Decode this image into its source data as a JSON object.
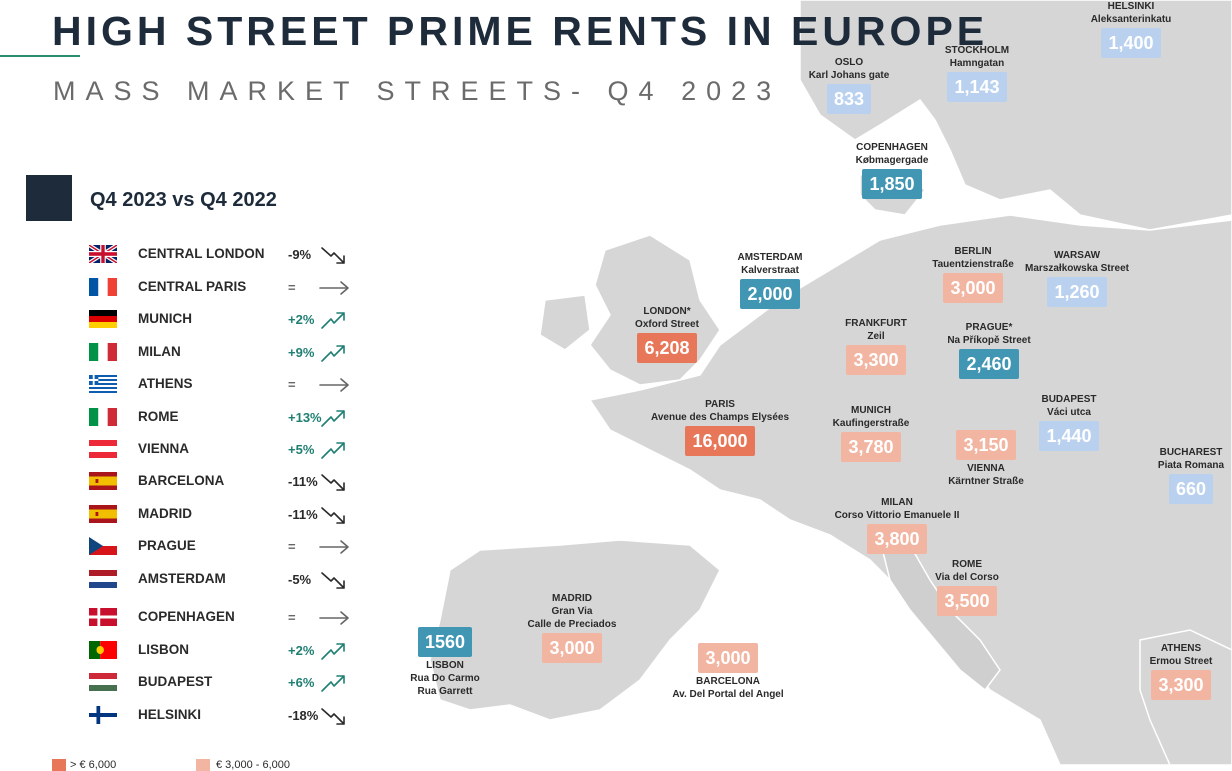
{
  "title": "HIGH STREET PRIME RENTS IN EUROPE",
  "subtitle": "MASS MARKET STREETS- Q4 2023",
  "comparison_title": "Q4 2023 vs Q4 2022",
  "colors": {
    "tier1": "#e8775a",
    "tier2": "#f1b5a2",
    "blue_dark": "#4196b3",
    "blue_light": "#b9d1ee",
    "up": "#1f7f73",
    "down": "#2a2a2a",
    "flat": "#666666",
    "navy": "#1d2b3a"
  },
  "chart_data": {
    "type": "table",
    "title": "HIGH STREET PRIME RENTS IN EUROPE",
    "subtitle": "MASS MARKET STREETS- Q4 2023",
    "changes": [
      {
        "city": "CENTRAL LONDON",
        "change": "-9%",
        "trend": "down",
        "flag": "uk"
      },
      {
        "city": "CENTRAL PARIS",
        "change": "=",
        "trend": "flat",
        "flag": "fr"
      },
      {
        "city": "MUNICH",
        "change": "+2%",
        "trend": "up",
        "flag": "de"
      },
      {
        "city": "MILAN",
        "change": "+9%",
        "trend": "up",
        "flag": "it"
      },
      {
        "city": "ATHENS",
        "change": "=",
        "trend": "flat",
        "flag": "gr"
      },
      {
        "city": "ROME",
        "change": "+13%",
        "trend": "up",
        "flag": "it"
      },
      {
        "city": "VIENNA",
        "change": "+5%",
        "trend": "up",
        "flag": "at"
      },
      {
        "city": "BARCELONA",
        "change": "-11%",
        "trend": "down",
        "flag": "es"
      },
      {
        "city": "MADRID",
        "change": "-11%",
        "trend": "down",
        "flag": "es"
      },
      {
        "city": "PRAGUE",
        "change": "=",
        "trend": "flat",
        "flag": "cz"
      },
      {
        "city": "AMSTERDAM",
        "change": "-5%",
        "trend": "down",
        "flag": "nl"
      },
      {
        "city": "COPENHAGEN",
        "change": "=",
        "trend": "flat",
        "flag": "dk"
      },
      {
        "city": "LISBON",
        "change": "+2%",
        "trend": "up",
        "flag": "pt"
      },
      {
        "city": "BUDAPEST",
        "change": "+6%",
        "trend": "up",
        "flag": "hu"
      },
      {
        "city": "HELSINKI",
        "change": "-18%",
        "trend": "down",
        "flag": "fi"
      }
    ],
    "rents": [
      {
        "city": "HELSINKI",
        "street": "Aleksanterinkatu",
        "value": "1,400",
        "color": "blue_light",
        "label_above": true
      },
      {
        "city": "OSLO",
        "street": "Karl Johans gate",
        "value": "833",
        "color": "blue_light",
        "label_above": true
      },
      {
        "city": "STOCKHOLM",
        "street": "Hamngatan",
        "value": "1,143",
        "color": "blue_light",
        "label_above": true
      },
      {
        "city": "COPENHAGEN",
        "street": "Købmagergade",
        "value": "1,850",
        "color": "blue_dark",
        "label_above": true
      },
      {
        "city": "AMSTERDAM",
        "street": "Kalverstraat",
        "value": "2,000",
        "color": "blue_dark",
        "label_above": true
      },
      {
        "city": "BERLIN",
        "street": "Tauentzienstraße",
        "value": "3,000",
        "color": "tier2",
        "label_above": true
      },
      {
        "city": "WARSAW",
        "street": "Marszałkowska Street",
        "value": "1,260",
        "color": "blue_light",
        "label_above": true
      },
      {
        "city": "LONDON*",
        "street": "Oxford Street",
        "value": "6,208",
        "color": "tier1",
        "label_above": true
      },
      {
        "city": "FRANKFURT",
        "street": "Zeil",
        "value": "3,300",
        "color": "tier2",
        "label_above": true
      },
      {
        "city": "PRAGUE*",
        "street": "Na Příkopě Street",
        "value": "2,460",
        "color": "blue_dark",
        "label_above": true
      },
      {
        "city": "PARIS",
        "street": "Avenue des Champs Elysées",
        "value": "16,000",
        "color": "tier1",
        "label_above": true
      },
      {
        "city": "MUNICH",
        "street": "Kaufingerstraße",
        "value": "3,780",
        "color": "tier2",
        "label_above": true
      },
      {
        "city": "BUDAPEST",
        "street": "Váci utca",
        "value": "1,440",
        "color": "blue_light",
        "label_above": true
      },
      {
        "city": "VIENNA",
        "street": "Kärntner Straße",
        "value": "3,150",
        "color": "tier2",
        "label_above": false
      },
      {
        "city": "BUCHAREST",
        "street": "Piata Romana",
        "value": "660",
        "color": "blue_light",
        "label_above": true
      },
      {
        "city": "MILAN",
        "street": "Corso Vittorio Emanuele II",
        "value": "3,800",
        "color": "tier2",
        "label_above": true
      },
      {
        "city": "ROME",
        "street": "Via del Corso",
        "value": "3,500",
        "color": "tier2",
        "label_above": true
      },
      {
        "city": "MADRID",
        "street": "Gran Via\nCalle de Preciados",
        "value": "3,000",
        "color": "tier2",
        "label_above": true
      },
      {
        "city": "LISBON",
        "street": "Rua Do Carmo\nRua Garrett",
        "value": "1560",
        "color": "blue_dark",
        "label_above": false
      },
      {
        "city": "BARCELONA",
        "street": "Av. Del Portal del Angel",
        "value": "3,000",
        "color": "tier2",
        "label_above": false
      },
      {
        "city": "ATHENS",
        "street": "Ermou Street",
        "value": "3,300",
        "color": "tier2",
        "label_above": true
      }
    ],
    "legend": [
      {
        "label": "> € 6,000",
        "color": "tier1"
      },
      {
        "label": "€ 3,000 - 6,000",
        "color": "tier2"
      }
    ]
  }
}
